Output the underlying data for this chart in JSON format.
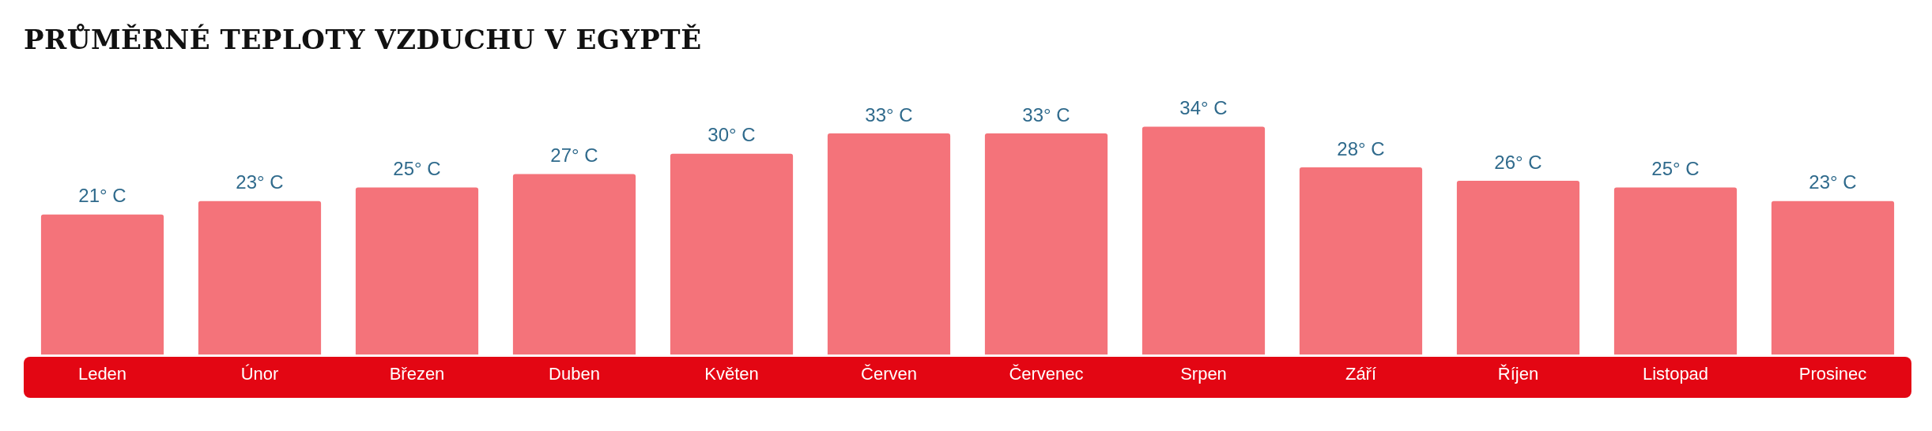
{
  "chart_data": {
    "type": "bar",
    "title": "PRŮMĚRNÉ TEPLOTY VZDUCHU V EGYPTĚ",
    "categories": [
      "Leden",
      "Únor",
      "Březen",
      "Duben",
      "Květen",
      "Červen",
      "Červenec",
      "Srpen",
      "Září",
      "Říjen",
      "Listopad",
      "Prosinec"
    ],
    "values": [
      21,
      23,
      25,
      27,
      30,
      33,
      33,
      34,
      28,
      26,
      25,
      23
    ],
    "value_labels": [
      "21° C",
      "23° C",
      "25° C",
      "27° C",
      "30° C",
      "33° C",
      "33° C",
      "34° C",
      "28° C",
      "26° C",
      "25° C",
      "23° C"
    ],
    "color": "#f4737a",
    "grid": false,
    "legend": false
  }
}
